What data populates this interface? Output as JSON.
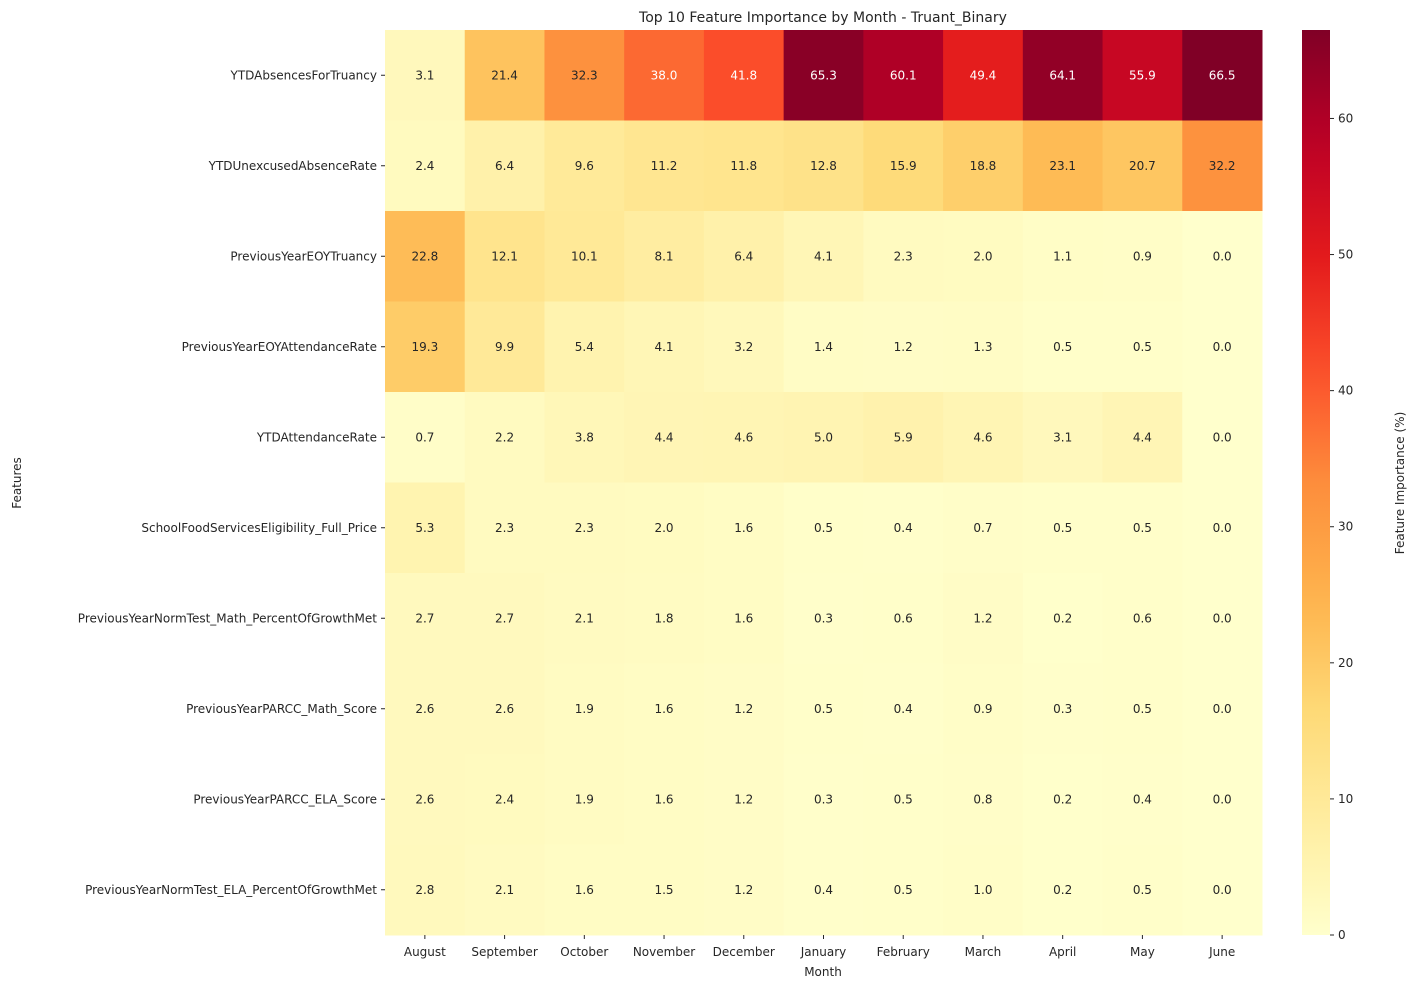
{
  "chart_data": {
    "type": "heatmap",
    "title": "Top 10 Feature Importance by Month - Truant_Binary",
    "xlabel": "Month",
    "ylabel": "Features",
    "colorbar_label": "Feature Importance (%)",
    "colormap": "YlOrRd",
    "colorbar_range": [
      0,
      66.5
    ],
    "colorbar_ticks": [
      "0",
      "10",
      "20",
      "30",
      "40",
      "50",
      "60"
    ],
    "columns": [
      "August",
      "September",
      "October",
      "November",
      "December",
      "January",
      "February",
      "March",
      "April",
      "May",
      "June"
    ],
    "rows": [
      "YTDAbsencesForTruancy",
      "YTDUnexcusedAbsenceRate",
      "PreviousYearEOYTruancy",
      "PreviousYearEOYAttendanceRate",
      "YTDAttendanceRate",
      "SchoolFoodServicesEligibility_Full_Price",
      "PreviousYearNormTest_Math_PercentOfGrowthMet",
      "PreviousYearPARCC_Math_Score",
      "PreviousYearPARCC_ELA_Score",
      "PreviousYearNormTest_ELA_PercentOfGrowthMet"
    ],
    "values": [
      [
        3.1,
        21.4,
        32.3,
        38.0,
        41.8,
        65.3,
        60.1,
        49.4,
        64.1,
        55.9,
        66.5
      ],
      [
        2.4,
        6.4,
        9.6,
        11.2,
        11.8,
        12.8,
        15.9,
        18.8,
        23.1,
        20.7,
        32.2
      ],
      [
        22.8,
        12.1,
        10.1,
        8.1,
        6.4,
        4.1,
        2.3,
        2.0,
        1.1,
        0.9,
        0.0
      ],
      [
        19.3,
        9.9,
        5.4,
        4.1,
        3.2,
        1.4,
        1.2,
        1.3,
        0.5,
        0.5,
        0.0
      ],
      [
        0.7,
        2.2,
        3.8,
        4.4,
        4.6,
        5.0,
        5.9,
        4.6,
        3.1,
        4.4,
        0.0
      ],
      [
        5.3,
        2.3,
        2.3,
        2.0,
        1.6,
        0.5,
        0.4,
        0.7,
        0.5,
        0.5,
        0.0
      ],
      [
        2.7,
        2.7,
        2.1,
        1.8,
        1.6,
        0.3,
        0.6,
        1.2,
        0.2,
        0.6,
        0.0
      ],
      [
        2.6,
        2.6,
        1.9,
        1.6,
        1.2,
        0.5,
        0.4,
        0.9,
        0.3,
        0.5,
        0.0
      ],
      [
        2.6,
        2.4,
        1.9,
        1.6,
        1.2,
        0.3,
        0.5,
        0.8,
        0.2,
        0.4,
        0.0
      ],
      [
        2.8,
        2.1,
        1.6,
        1.5,
        1.2,
        0.4,
        0.5,
        1.0,
        0.2,
        0.5,
        0.0
      ]
    ]
  }
}
